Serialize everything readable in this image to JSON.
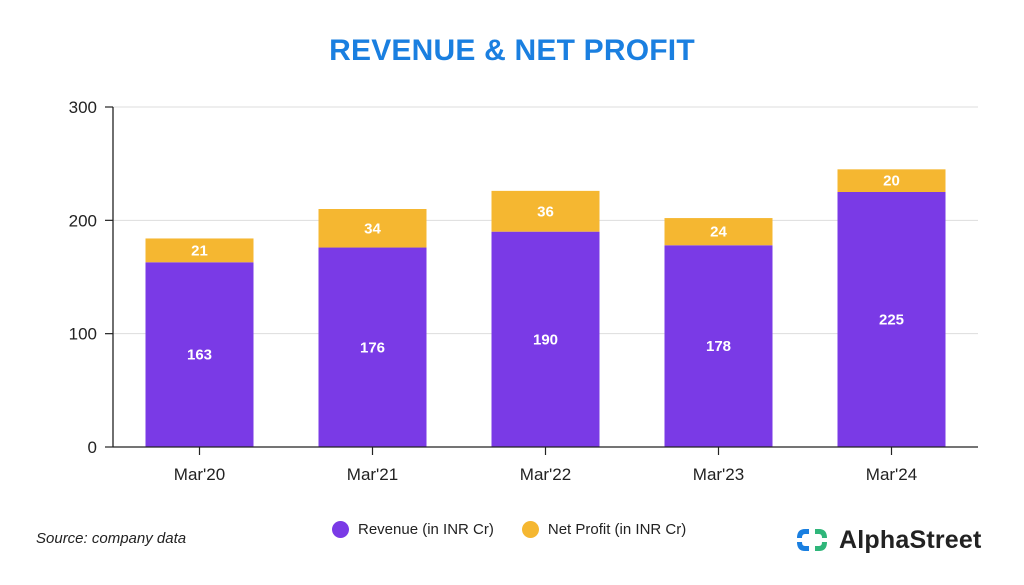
{
  "chart_data": {
    "type": "bar",
    "stacked": true,
    "title": "REVENUE & NET PROFIT",
    "categories": [
      "Mar'20",
      "Mar'21",
      "Mar'22",
      "Mar'23",
      "Mar'24"
    ],
    "series": [
      {
        "name": "Revenue (in INR Cr)",
        "values": [
          163,
          176,
          190,
          178,
          225
        ],
        "color": "#7a3ae6"
      },
      {
        "name": "Net Profit (in INR Cr)",
        "values": [
          21,
          34,
          36,
          24,
          20
        ],
        "color": "#f5b731"
      }
    ],
    "xlabel": "",
    "ylabel": "",
    "ylim": [
      0,
      300
    ],
    "yticks": [
      0,
      100,
      200,
      300
    ],
    "grid": true,
    "legend_position": "bottom-center"
  },
  "footer": {
    "source": "Source: company data",
    "brand": "AlphaStreet",
    "brand_colors": {
      "blue": "#1a7fe0",
      "green": "#2fb67a"
    }
  },
  "colors": {
    "title": "#1a7fe0",
    "gridline": "#dddddd",
    "axis": "#222222"
  }
}
